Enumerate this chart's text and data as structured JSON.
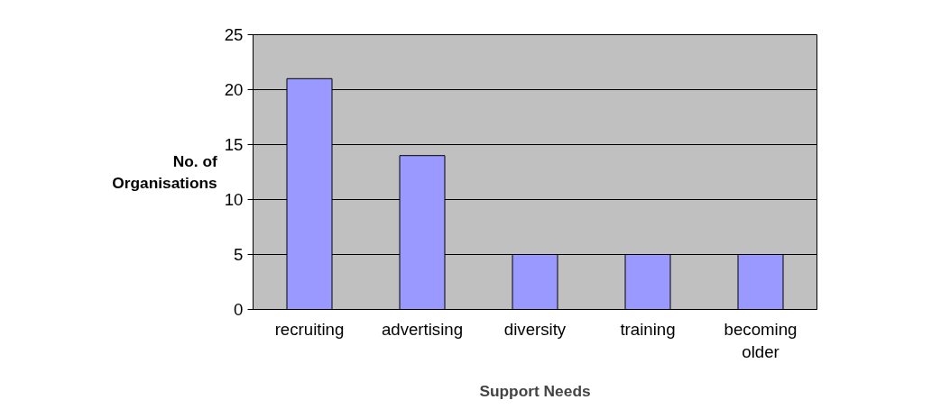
{
  "chart_data": {
    "type": "bar",
    "xlabel": "Support Needs",
    "ylabel": "No. of Organisations",
    "categories": [
      "recruiting",
      "advertising",
      "diversity",
      "training",
      "becoming older"
    ],
    "values": [
      21,
      14,
      5,
      5,
      5
    ],
    "color": "#9999ff",
    "ylim": [
      0,
      25
    ],
    "yticks": [
      0,
      5,
      10,
      15,
      20,
      25
    ],
    "grid": "y"
  }
}
